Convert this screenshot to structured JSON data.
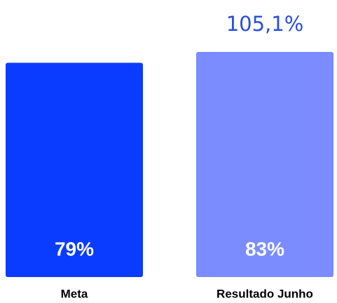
{
  "chart_data": {
    "type": "bar",
    "categories": [
      "Meta",
      "Resultado Junho"
    ],
    "values": [
      79,
      83
    ],
    "value_labels": [
      "79%",
      "83%"
    ],
    "colors": [
      "#0a3cff",
      "#7a8cff"
    ],
    "annotation": "105,1%"
  }
}
